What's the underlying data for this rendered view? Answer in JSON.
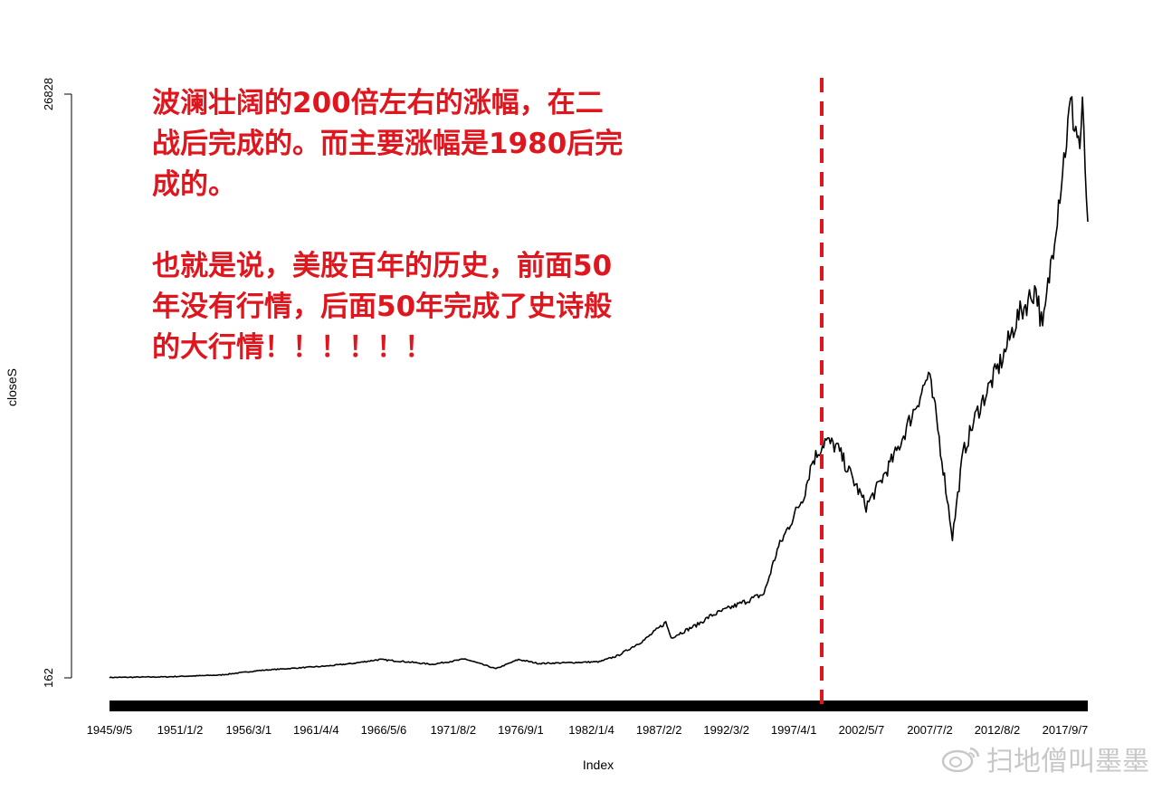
{
  "chart_data": {
    "type": "line",
    "title": "",
    "xlabel": "Index",
    "ylabel": "closeS",
    "ylim": [
      162,
      26828
    ],
    "y_ticks": [
      "162",
      "26828"
    ],
    "x_tick_labels": [
      "1945/9/5",
      "1951/1/2",
      "1956/3/1",
      "1961/4/4",
      "1966/5/6",
      "1971/8/2",
      "1976/9/1",
      "1982/1/4",
      "1987/2/2",
      "1992/3/2",
      "1997/4/1",
      "2002/5/7",
      "2007/7/2",
      "2012/8/2",
      "2017/9/7"
    ],
    "x_tick_years": [
      1945.68,
      1951.0,
      1956.17,
      1961.25,
      1966.34,
      1971.58,
      1976.67,
      1982.0,
      1987.09,
      1992.17,
      1997.25,
      2002.35,
      2007.5,
      2012.58,
      2017.69
    ],
    "series": [
      {
        "x": [
          1945.68,
          1950,
          1954,
          1957,
          1960,
          1962,
          1964,
          1966,
          1968,
          1970,
          1972.5,
          1974.8,
          1976.5,
          1978,
          1980,
          1982.6,
          1984,
          1986,
          1987.6,
          1988,
          1990,
          1991,
          1993,
          1995,
          1996,
          1998,
          1998.6,
          1999.6,
          2000.5,
          2002.7,
          2003.5,
          2005,
          2007.4,
          2008,
          2009.2,
          2010,
          2011,
          2013,
          2014,
          2015.5,
          2016,
          2017,
          2018.1,
          2018.8,
          2019,
          2019.4
        ],
        "y": [
          180,
          210,
          290,
          500,
          620,
          700,
          820,
          1000,
          900,
          780,
          1020,
          580,
          1000,
          820,
          850,
          900,
          1180,
          1900,
          2700,
          2000,
          2600,
          3000,
          3500,
          4000,
          6000,
          8500,
          10000,
          11000,
          10700,
          8000,
          8800,
          10500,
          14000,
          12000,
          6600,
          10400,
          12200,
          14800,
          16500,
          18000,
          16000,
          21000,
          26300,
          24500,
          26000,
          21000
        ]
      }
    ],
    "reference_line": {
      "x": 1999.35,
      "color": "#e0161e",
      "style": "dashed"
    },
    "colors": {
      "line": "#000000",
      "reference": "#e0161e",
      "annotation": "#e0161e"
    }
  },
  "annotation": {
    "para1": "波澜壮阔的200倍左右的涨幅，在二\n战后完成的。而主要涨幅是1980后完\n成的。",
    "para2": "也就是说，美股百年的历史，前面50\n年没有行情，后面50年完成了史诗般\n的大行情！！！！！！"
  },
  "watermark": {
    "text": "扫地僧叫墨墨",
    "icon": "weibo-logo-icon"
  }
}
